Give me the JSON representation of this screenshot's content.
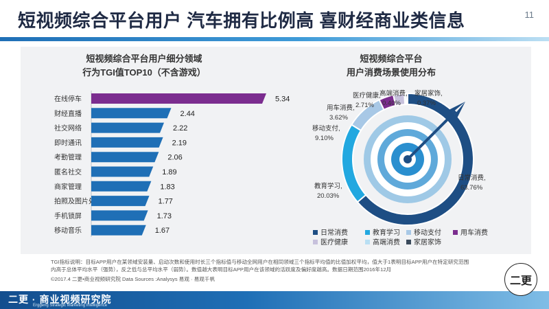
{
  "header": {
    "title": "短视频综合平台用户 汽车拥有比例高 喜财经商业类信息",
    "page_number": "11"
  },
  "chart_data": [
    {
      "type": "bar",
      "orientation": "horizontal",
      "title_lines": [
        "短视频综合平台用户细分领域",
        "行为TGI值TOP10（不含游戏）"
      ],
      "categories": [
        "在线停车",
        "财经直播",
        "社交网络",
        "即时通讯",
        "考勤管理",
        "匿名社交",
        "商家管理",
        "拍照及图片处理",
        "手机锁屏",
        "移动音乐"
      ],
      "values": [
        5.34,
        2.44,
        2.22,
        2.19,
        2.06,
        1.89,
        1.83,
        1.77,
        1.73,
        1.67
      ],
      "value_labels": [
        "5.34",
        "2.44",
        "2.22",
        "2.19",
        "2.06",
        "1.89",
        "1.83",
        "1.77",
        "1.73",
        "1.67"
      ],
      "colors": [
        "#7b2d8f",
        "#1f6fb6",
        "#1f6fb6",
        "#1f6fb6",
        "#1f6fb6",
        "#1f6fb6",
        "#1f6fb6",
        "#1f6fb6",
        "#1f6fb6",
        "#1f6fb6"
      ],
      "xlim": [
        0,
        5.34
      ]
    },
    {
      "type": "pie",
      "variant": "donut",
      "title_lines": [
        "短视频综合平台",
        "用户消费场景使用分布"
      ],
      "series": [
        {
          "name": "日常消费",
          "value": 63.76,
          "label": "日常消费,",
          "value_label": "63.76%",
          "color": "#1e4e84"
        },
        {
          "name": "教育学习",
          "value": 20.03,
          "label": "教育学习,",
          "value_label": "20.03%",
          "color": "#22a8e0"
        },
        {
          "name": "移动支付",
          "value": 9.1,
          "label": "移动支付,",
          "value_label": "9.10%",
          "color": "#a8c8e6"
        },
        {
          "name": "用车消费",
          "value": 3.62,
          "label": "用车消费,",
          "value_label": "3.62%",
          "color": "#7b2d8f"
        },
        {
          "name": "医疗健康",
          "value": 2.71,
          "label": "医疗健康,",
          "value_label": "2.71%",
          "color": "#c7c1dc"
        },
        {
          "name": "高端消费",
          "value": 0.4,
          "label": "高端消费,",
          "value_label": "0.40%",
          "color": "#b9dff3"
        },
        {
          "name": "家居家饰",
          "value": 0.37,
          "label": "家居家饰,",
          "value_label": "0.37%",
          "color": "#3a4a5c"
        }
      ],
      "legend_position": "bottom"
    }
  ],
  "notes": {
    "line1": "TGI指标说明：目标APP用户在某领域安装量、启动次数和使用时长三个指标值与移动全网用户在相同领域三个指标平均值的比值加权平均，值大于1表明目标APP用户在特定研究范围",
    "line2": "内高于总体平均水平（强势），反之低与总平均水平（弱势）。数值越大表明目标APP用户在该领域的活跃度及偏好度越高。数据日期范围2016年12月",
    "line3": "©2017.4 二更•商业视频研究院  Data Sources :Analysys 易观 · 易观千帆"
  },
  "footer": {
    "brand": "二更 · 商业视频研究院",
    "brand_sub": "Erggeng Strategic Marketing Intelligence"
  },
  "seal": {
    "text": "二更"
  },
  "colors": {
    "title": "#1f2a44",
    "accent_blue": "#1f6fb6",
    "accent_purple": "#7b2d8f",
    "panel_bg": "#f1f2f4"
  }
}
